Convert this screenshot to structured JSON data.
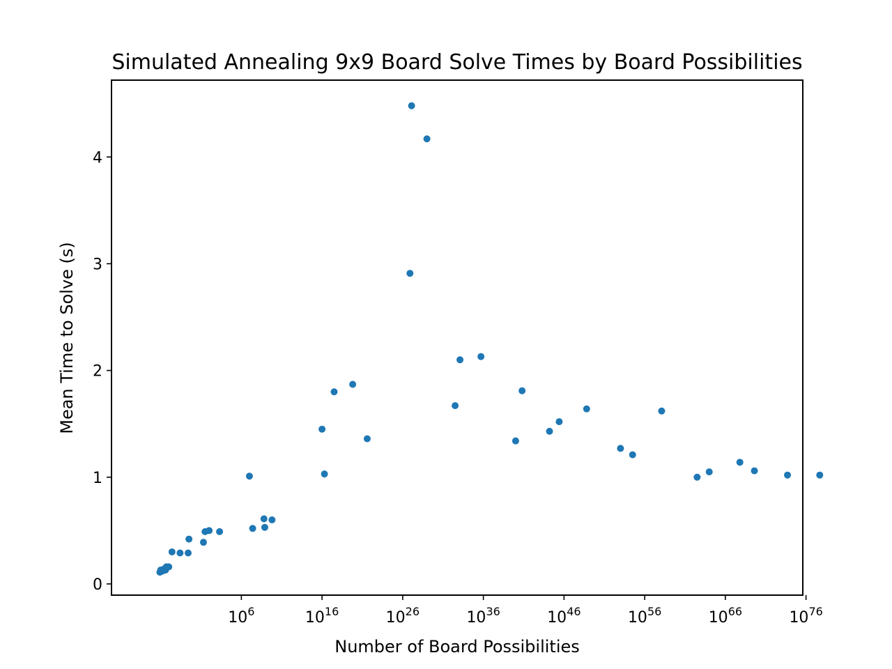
{
  "chart_data": {
    "type": "scatter",
    "title": "Simulated Annealing 9x9 Board Solve Times by Board Possibilities",
    "xlabel": "Number of Board Possibilities",
    "ylabel": "Mean Time to Solve (s)",
    "x_scale": "log10",
    "xlim_log10": [
      -10.1,
      75.6
    ],
    "ylim": [
      -0.105,
      4.72
    ],
    "grid": false,
    "color": "#1f77b4",
    "x_ticks": [
      {
        "exp": 6,
        "base": "10",
        "sup": "6"
      },
      {
        "exp": 16,
        "base": "10",
        "sup": "16"
      },
      {
        "exp": 26,
        "base": "10",
        "sup": "26"
      },
      {
        "exp": 36,
        "base": "10",
        "sup": "36"
      },
      {
        "exp": 46,
        "base": "10",
        "sup": "46"
      },
      {
        "exp": 56,
        "base": "10",
        "sup": "56"
      },
      {
        "exp": 66,
        "base": "10",
        "sup": "66"
      },
      {
        "exp": 76,
        "base": "10",
        "sup": "76"
      }
    ],
    "y_ticks": [
      0,
      1,
      2,
      3,
      4
    ],
    "points_log10x": [
      [
        -4.1,
        0.11
      ],
      [
        -4.0,
        0.13
      ],
      [
        -3.8,
        0.12
      ],
      [
        -3.6,
        0.14
      ],
      [
        -3.4,
        0.13
      ],
      [
        -3.3,
        0.16
      ],
      [
        -3.0,
        0.16
      ],
      [
        -2.6,
        0.3
      ],
      [
        -1.6,
        0.29
      ],
      [
        -0.6,
        0.29
      ],
      [
        -0.5,
        0.42
      ],
      [
        1.3,
        0.39
      ],
      [
        1.5,
        0.49
      ],
      [
        2.0,
        0.5
      ],
      [
        3.3,
        0.49
      ],
      [
        7.0,
        1.01
      ],
      [
        7.4,
        0.52
      ],
      [
        8.8,
        0.61
      ],
      [
        8.9,
        0.53
      ],
      [
        9.8,
        0.6
      ],
      [
        16.0,
        1.45
      ],
      [
        16.3,
        1.03
      ],
      [
        17.5,
        1.8
      ],
      [
        19.8,
        1.87
      ],
      [
        21.6,
        1.36
      ],
      [
        26.9,
        2.91
      ],
      [
        27.1,
        4.48
      ],
      [
        29.0,
        4.17
      ],
      [
        32.5,
        1.67
      ],
      [
        33.1,
        2.1
      ],
      [
        35.7,
        2.13
      ],
      [
        40.0,
        1.34
      ],
      [
        40.8,
        1.81
      ],
      [
        44.2,
        1.43
      ],
      [
        45.4,
        1.52
      ],
      [
        48.8,
        1.64
      ],
      [
        53.0,
        1.27
      ],
      [
        54.5,
        1.21
      ],
      [
        58.1,
        1.62
      ],
      [
        62.5,
        1.0
      ],
      [
        64.0,
        1.05
      ],
      [
        67.8,
        1.14
      ],
      [
        69.6,
        1.06
      ],
      [
        73.7,
        1.02
      ],
      [
        77.7,
        1.02
      ]
    ]
  }
}
